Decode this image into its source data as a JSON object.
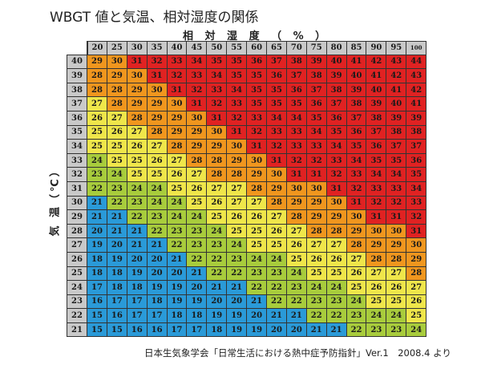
{
  "title": "WBGT 値と気温、相対湿度の関係",
  "footer": "日本生気象学会「日常生活における熱中症予防指針」Ver.1　2008.4 より",
  "chart_data": {
    "type": "heatmap",
    "title": "WBGT 値と気温、相対湿度の関係",
    "xlabel": "相 対 湿 度 （ % ）",
    "ylabel": "気 温（℃）",
    "x": [
      "20",
      "25",
      "30",
      "35",
      "40",
      "45",
      "50",
      "55",
      "60",
      "65",
      "70",
      "75",
      "80",
      "85",
      "90",
      "95",
      "100"
    ],
    "y": [
      "40",
      "39",
      "38",
      "37",
      "36",
      "35",
      "34",
      "33",
      "32",
      "31",
      "30",
      "29",
      "28",
      "27",
      "26",
      "25",
      "24",
      "23",
      "22",
      "21"
    ],
    "values": [
      [
        29,
        30,
        31,
        32,
        33,
        34,
        35,
        35,
        36,
        37,
        38,
        39,
        40,
        41,
        42,
        43,
        44
      ],
      [
        28,
        29,
        30,
        31,
        32,
        33,
        34,
        35,
        35,
        36,
        37,
        38,
        39,
        40,
        41,
        42,
        43
      ],
      [
        28,
        28,
        29,
        30,
        31,
        32,
        33,
        34,
        35,
        35,
        36,
        37,
        38,
        39,
        40,
        41,
        42
      ],
      [
        27,
        28,
        29,
        29,
        30,
        31,
        32,
        33,
        35,
        35,
        35,
        36,
        37,
        38,
        39,
        40,
        41
      ],
      [
        26,
        27,
        28,
        29,
        29,
        30,
        31,
        32,
        33,
        34,
        34,
        35,
        36,
        37,
        38,
        39,
        39
      ],
      [
        25,
        26,
        27,
        28,
        29,
        29,
        30,
        31,
        32,
        33,
        33,
        34,
        35,
        36,
        37,
        38,
        38
      ],
      [
        25,
        25,
        26,
        27,
        28,
        29,
        29,
        30,
        31,
        32,
        33,
        33,
        34,
        35,
        36,
        37,
        37
      ],
      [
        24,
        25,
        25,
        26,
        27,
        28,
        28,
        29,
        30,
        31,
        32,
        32,
        33,
        34,
        35,
        35,
        36
      ],
      [
        23,
        24,
        25,
        25,
        26,
        27,
        28,
        28,
        29,
        30,
        31,
        31,
        32,
        33,
        34,
        34,
        35
      ],
      [
        22,
        23,
        24,
        24,
        25,
        26,
        27,
        27,
        28,
        29,
        30,
        30,
        31,
        32,
        33,
        33,
        34
      ],
      [
        21,
        22,
        23,
        24,
        24,
        25,
        26,
        27,
        27,
        28,
        29,
        29,
        30,
        31,
        32,
        32,
        33
      ],
      [
        21,
        21,
        22,
        23,
        24,
        24,
        25,
        26,
        26,
        27,
        28,
        29,
        29,
        30,
        31,
        31,
        32
      ],
      [
        20,
        21,
        21,
        22,
        23,
        23,
        24,
        25,
        25,
        26,
        27,
        28,
        28,
        29,
        30,
        30,
        31
      ],
      [
        19,
        20,
        21,
        21,
        22,
        23,
        23,
        24,
        25,
        25,
        26,
        27,
        27,
        28,
        29,
        29,
        30
      ],
      [
        18,
        19,
        20,
        20,
        21,
        22,
        22,
        23,
        24,
        24,
        25,
        26,
        26,
        27,
        28,
        28,
        29
      ],
      [
        18,
        18,
        19,
        20,
        20,
        21,
        22,
        22,
        23,
        23,
        24,
        25,
        25,
        26,
        27,
        27,
        28
      ],
      [
        17,
        18,
        18,
        19,
        19,
        20,
        21,
        21,
        22,
        22,
        23,
        24,
        24,
        25,
        26,
        26,
        27
      ],
      [
        16,
        17,
        17,
        18,
        19,
        19,
        20,
        20,
        21,
        22,
        22,
        23,
        23,
        24,
        25,
        25,
        26
      ],
      [
        15,
        16,
        17,
        17,
        18,
        18,
        19,
        19,
        20,
        21,
        21,
        22,
        22,
        23,
        24,
        24,
        25
      ],
      [
        15,
        15,
        16,
        16,
        17,
        17,
        18,
        19,
        19,
        20,
        20,
        21,
        21,
        22,
        23,
        23,
        24
      ]
    ],
    "color_bands": [
      {
        "max": 21,
        "color": "#2a9ad8"
      },
      {
        "max": 24,
        "color": "#a8cc3c"
      },
      {
        "max": 27,
        "color": "#efe64a"
      },
      {
        "max": 30,
        "color": "#f0961e"
      },
      {
        "max": 99,
        "color": "#e02222"
      }
    ]
  }
}
